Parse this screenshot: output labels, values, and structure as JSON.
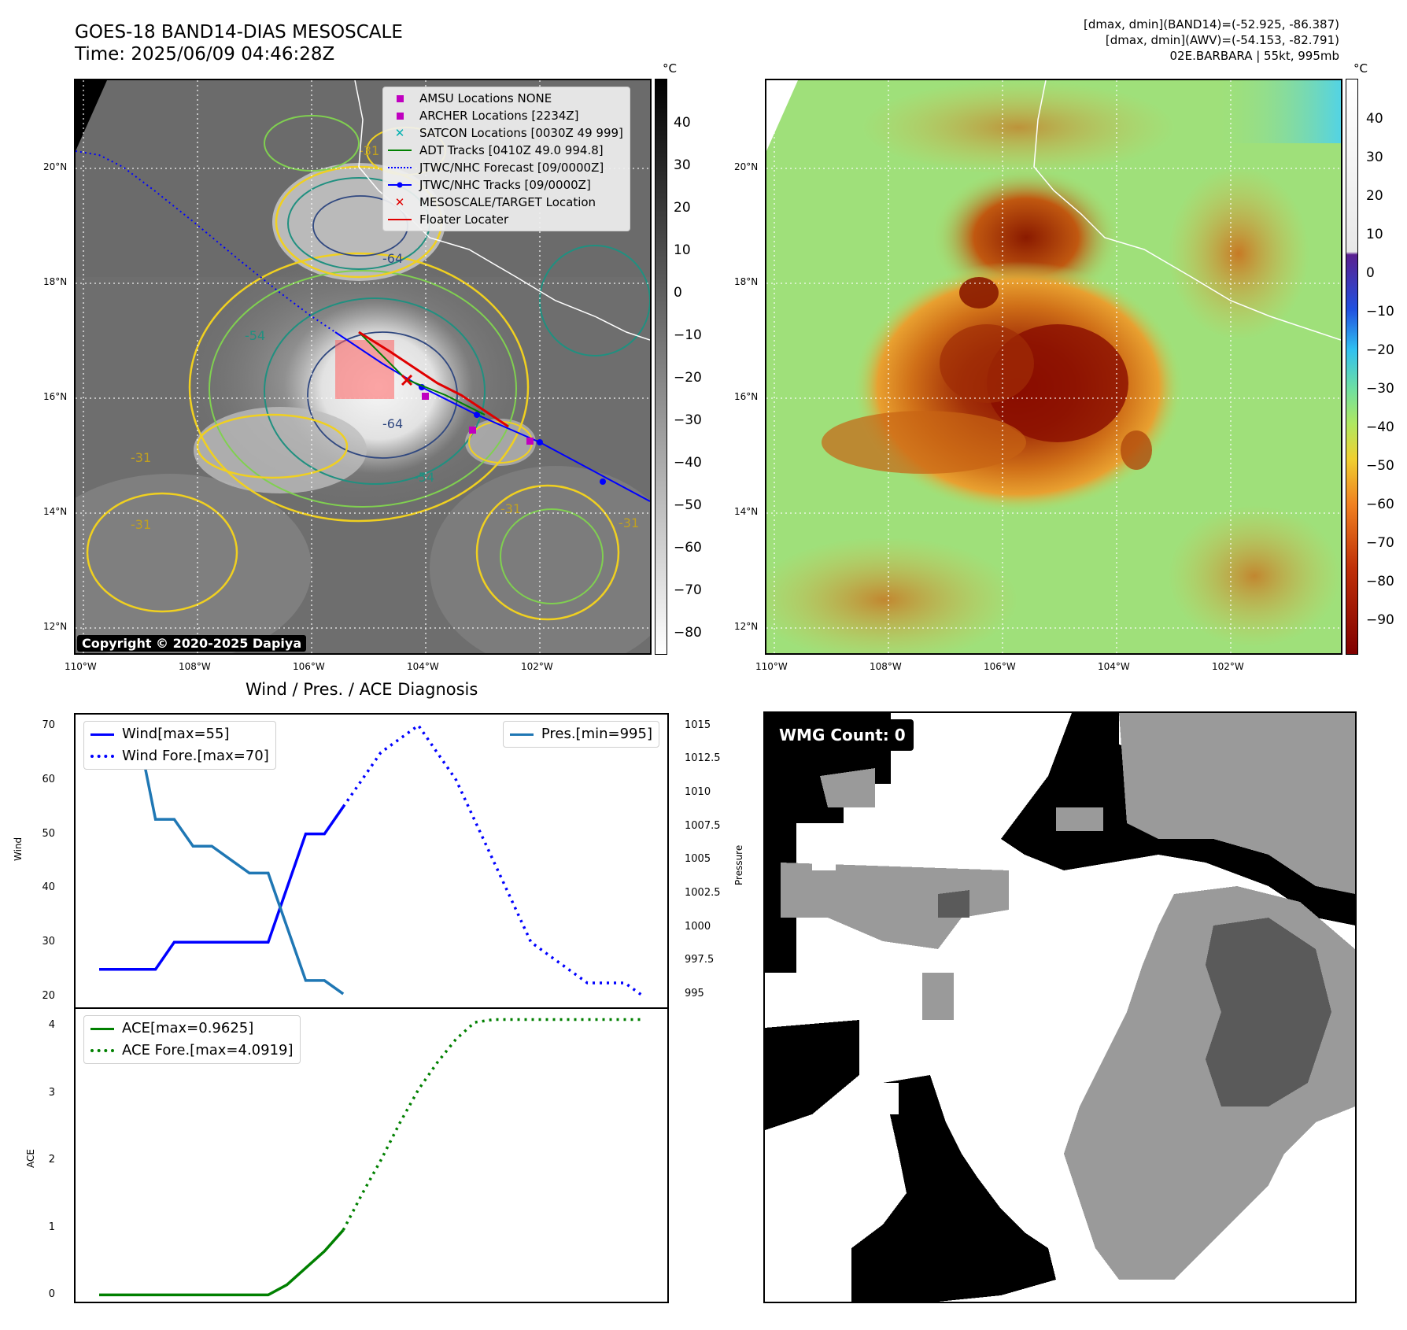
{
  "header": {
    "title_line1": "GOES-18 BAND14-DIAS MESOSCALE",
    "title_line2": "Time: 2025/06/09 04:46:28Z",
    "info_line1": "[dmax, dmin](BAND14)=(-52.925, -86.387)",
    "info_line2": "[dmax, dmin](AWV)=(-54.153, -82.791)",
    "info_line3": "02E.BARBARA | 55kt, 995mb"
  },
  "ir_map": {
    "lat_labels": [
      "20°N",
      "18°N",
      "16°N",
      "14°N",
      "12°N"
    ],
    "lon_labels": [
      "110°W",
      "108°W",
      "106°W",
      "104°W",
      "102°W"
    ],
    "contour_labels": [
      "-64",
      "-64",
      "-54",
      "-54",
      "-31",
      "-31",
      "-31",
      "-31",
      "-31"
    ],
    "copyright": "Copyright © 2020-2025 Dapiya",
    "legend": [
      {
        "label": "AMSU Locations NONE",
        "symbol": "square",
        "color": "#c000c0"
      },
      {
        "label": "ARCHER Locations [2234Z]",
        "symbol": "square",
        "color": "#c000c0"
      },
      {
        "label": "SATCON Locations [0030Z 49 999]",
        "symbol": "x",
        "color": "#00b0b0"
      },
      {
        "label": "ADT Tracks [0410Z 49.0 994.8]",
        "symbol": "line",
        "color": "#008000"
      },
      {
        "label": "JTWC/NHC Forecast [09/0000Z]",
        "symbol": "dotted",
        "color": "#0000ff"
      },
      {
        "label": "JTWC/NHC Tracks [09/0000Z]",
        "symbol": "line-dot",
        "color": "#0000ff"
      },
      {
        "label": "MESOSCALE/TARGET Location",
        "symbol": "x",
        "color": "#e00000"
      },
      {
        "label": "Floater Locater",
        "symbol": "line",
        "color": "#e00000"
      }
    ],
    "colorbar_unit": "°C",
    "colorbar_ticks": [
      "40",
      "30",
      "20",
      "10",
      "0",
      "−10",
      "−20",
      "−30",
      "−40",
      "−50",
      "−60",
      "−70",
      "−80"
    ]
  },
  "enhanced_map": {
    "lat_labels": [
      "20°N",
      "18°N",
      "16°N",
      "14°N",
      "12°N"
    ],
    "lon_labels": [
      "110°W",
      "108°W",
      "106°W",
      "104°W",
      "102°W"
    ],
    "colorbar_unit": "°C",
    "colorbar_ticks": [
      "40",
      "30",
      "20",
      "10",
      "0",
      "−10",
      "−20",
      "−30",
      "−40",
      "−50",
      "−60",
      "−70",
      "−80",
      "−90"
    ]
  },
  "diagnosis": {
    "title": "Wind / Pres. / ACE Diagnosis"
  },
  "wmg": {
    "label": "WMG Count: 0"
  },
  "colors": {
    "wind": "#0000ff",
    "pressure": "#1f77b4",
    "ace": "#008000",
    "contour_yellow": "#f0d020",
    "contour_green": "#80d050",
    "contour_teal": "#209080",
    "contour_blue": "#304880"
  },
  "chart_data": [
    {
      "type": "line",
      "ylabel": "Wind",
      "ylim": [
        18,
        72
      ],
      "yticks": [
        20,
        30,
        40,
        50,
        60,
        70
      ],
      "legend_placement": "upper-left",
      "series": [
        {
          "name": "Wind[max=55]",
          "style": "solid",
          "color": "#0000ff",
          "x": [
            0,
            1,
            2,
            3,
            4,
            5,
            6,
            7,
            8,
            9,
            10,
            11,
            12,
            13
          ],
          "values": [
            25,
            25,
            25,
            25,
            30,
            30,
            30,
            30,
            30,
            30,
            40,
            50,
            50,
            55
          ]
        },
        {
          "name": "Wind Fore.[max=70]",
          "style": "dotted",
          "color": "#0000ff",
          "x": [
            13,
            14,
            15,
            16,
            17,
            18,
            19,
            20,
            21,
            22,
            23,
            24,
            25,
            26,
            27,
            28,
            29
          ],
          "values": [
            55,
            60,
            65,
            67.5,
            70,
            65,
            60,
            52.5,
            45,
            37.5,
            30,
            27.5,
            25,
            22.5,
            22.5,
            22.5,
            20
          ]
        }
      ]
    },
    {
      "type": "line",
      "ylabel": "Pressure",
      "ylim": [
        994.0,
        1015.8
      ],
      "yticks": [
        995.0,
        997.5,
        1000.0,
        1002.5,
        1005.0,
        1007.5,
        1010.0,
        1012.5,
        1015.0
      ],
      "legend_placement": "upper-right",
      "series": [
        {
          "name": "Pres.[min=995]",
          "style": "solid",
          "color": "#1f77b4",
          "x": [
            0,
            1,
            2,
            3,
            4,
            5,
            6,
            7,
            8,
            9,
            10,
            11,
            12,
            13
          ],
          "values": [
            1015,
            1015,
            1015,
            1008,
            1008,
            1006,
            1006,
            1005,
            1004,
            1004,
            1000,
            996,
            996,
            995
          ]
        }
      ]
    },
    {
      "type": "line",
      "ylabel": "ACE",
      "ylim": [
        -0.1,
        4.25
      ],
      "yticks": [
        0,
        1,
        2,
        3,
        4
      ],
      "legend_placement": "upper-left",
      "series": [
        {
          "name": "ACE[max=0.9625]",
          "style": "solid",
          "color": "#008000",
          "x": [
            0,
            1,
            2,
            3,
            4,
            5,
            6,
            7,
            8,
            9,
            10,
            11,
            12,
            13
          ],
          "values": [
            0,
            0,
            0,
            0,
            0,
            0,
            0,
            0,
            0,
            0,
            0.15,
            0.4,
            0.65,
            0.9625
          ]
        },
        {
          "name": "ACE Fore.[max=4.0919]",
          "style": "dotted",
          "color": "#008000",
          "x": [
            13,
            14,
            15,
            16,
            17,
            18,
            19,
            20,
            21,
            22,
            23,
            24,
            25,
            26,
            27,
            28,
            29
          ],
          "values": [
            0.9625,
            1.5,
            2.0,
            2.55,
            3.05,
            3.45,
            3.8,
            4.05,
            4.0919,
            4.0919,
            4.0919,
            4.0919,
            4.0919,
            4.0919,
            4.0919,
            4.0919,
            4.0919
          ]
        }
      ]
    }
  ]
}
